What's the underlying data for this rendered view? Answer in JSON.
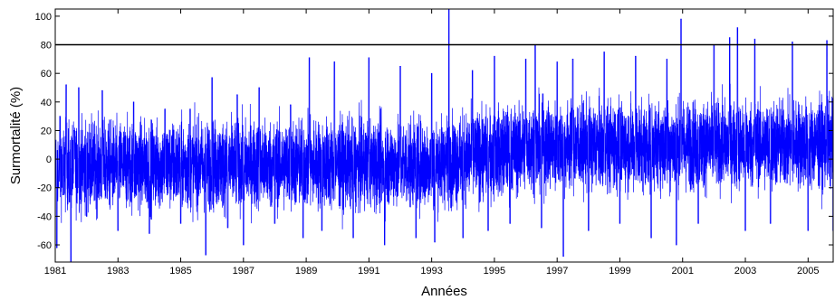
{
  "chart_data": {
    "type": "line",
    "xlabel": "Années",
    "ylabel": "Surmortalité (%)",
    "xlim": [
      1981,
      2005.8
    ],
    "ylim": [
      -72,
      105
    ],
    "x_ticks": [
      1981,
      1983,
      1985,
      1987,
      1989,
      1991,
      1993,
      1995,
      1997,
      1999,
      2001,
      2003,
      2005
    ],
    "x_tick_labels": [
      "1981",
      "1983",
      "1985",
      "1987",
      "1989",
      "1991",
      "1993",
      "1995",
      "1997",
      "1999",
      "2001",
      "2003",
      "2005"
    ],
    "y_ticks": [
      -60,
      -40,
      -20,
      0,
      20,
      40,
      60,
      80,
      100
    ],
    "y_tick_labels": [
      "-60",
      "-40",
      "-20",
      "0",
      "20",
      "40",
      "60",
      "80",
      "100"
    ],
    "threshold": {
      "value": 80,
      "color": "#000000"
    },
    "series": [
      {
        "color": "#0000ff",
        "description": "Daily excess mortality, approx. 9000 points; baseline rises from about -5 in 1981-1993 to about +10 after 1995",
        "points": [
          [
            1981.0,
            -20
          ],
          [
            1981.05,
            -62
          ],
          [
            1981.1,
            -20
          ],
          [
            1981.15,
            30
          ],
          [
            1981.25,
            -25
          ],
          [
            1981.35,
            52
          ],
          [
            1981.45,
            -30
          ],
          [
            1981.5,
            -72
          ],
          [
            1981.6,
            20
          ],
          [
            1981.75,
            50
          ],
          [
            1982.0,
            -40
          ],
          [
            1982.5,
            48
          ],
          [
            1983.0,
            -50
          ],
          [
            1983.5,
            40
          ],
          [
            1984.0,
            -52
          ],
          [
            1984.5,
            35
          ],
          [
            1985.0,
            -45
          ],
          [
            1985.3,
            35
          ],
          [
            1985.8,
            -67
          ],
          [
            1986.0,
            57
          ],
          [
            1986.5,
            -48
          ],
          [
            1986.8,
            45
          ],
          [
            1987.0,
            -60
          ],
          [
            1987.5,
            50
          ],
          [
            1988.0,
            -45
          ],
          [
            1988.5,
            38
          ],
          [
            1988.9,
            -55
          ],
          [
            1989.1,
            71
          ],
          [
            1989.5,
            -50
          ],
          [
            1989.9,
            68
          ],
          [
            1990.5,
            -55
          ],
          [
            1991.0,
            71
          ],
          [
            1991.5,
            -60
          ],
          [
            1992.0,
            65
          ],
          [
            1992.5,
            -55
          ],
          [
            1993.0,
            60
          ],
          [
            1993.1,
            -58
          ],
          [
            1993.55,
            110
          ],
          [
            1994.0,
            -55
          ],
          [
            1994.3,
            62
          ],
          [
            1994.8,
            -50
          ],
          [
            1995.0,
            72
          ],
          [
            1995.5,
            -45
          ],
          [
            1996.0,
            70
          ],
          [
            1996.3,
            80
          ],
          [
            1996.5,
            -48
          ],
          [
            1997.0,
            68
          ],
          [
            1997.2,
            -68
          ],
          [
            1997.5,
            70
          ],
          [
            1998.0,
            -50
          ],
          [
            1998.5,
            75
          ],
          [
            1999.0,
            -45
          ],
          [
            1999.5,
            72
          ],
          [
            2000.0,
            -55
          ],
          [
            2000.5,
            70
          ],
          [
            2000.8,
            -60
          ],
          [
            2000.95,
            98
          ],
          [
            2001.5,
            -45
          ],
          [
            2002.0,
            80
          ],
          [
            2002.5,
            85
          ],
          [
            2002.75,
            92
          ],
          [
            2003.0,
            -50
          ],
          [
            2003.3,
            84
          ],
          [
            2003.8,
            -45
          ],
          [
            2004.5,
            82
          ],
          [
            2005.0,
            -50
          ],
          [
            2005.6,
            83
          ],
          [
            2005.8,
            -50
          ]
        ]
      }
    ]
  }
}
